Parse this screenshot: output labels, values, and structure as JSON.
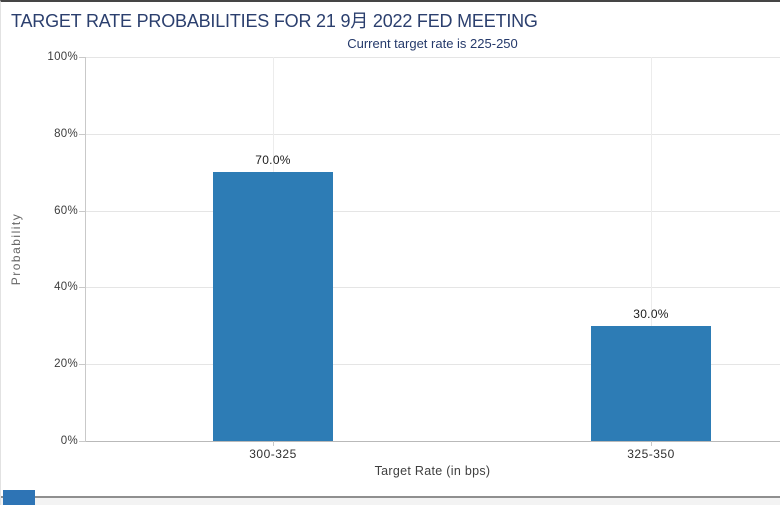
{
  "window": {
    "title": "TARGET RATE PROBABILITIES FOR 21 9月 2022 FED MEETING",
    "subtitle": "Current target rate is 225-250"
  },
  "chart_data": {
    "type": "bar",
    "title": "TARGET RATE PROBABILITIES FOR 21 9月 2022 FED MEETING",
    "subtitle": "Current target rate is 225-250",
    "categories": [
      "300-325",
      "325-350"
    ],
    "values": [
      70.0,
      30.0
    ],
    "value_labels": [
      "70.0%",
      "30.0%"
    ],
    "xlabel": "Target Rate (in bps)",
    "ylabel": "Probability",
    "ylim": [
      0,
      100
    ],
    "yticks": [
      0,
      20,
      40,
      60,
      80,
      100
    ],
    "ytick_labels": [
      "0%",
      "20%",
      "40%",
      "60%",
      "80%",
      "100%"
    ],
    "grid": true,
    "legend_position": "none",
    "bar_color": "#2d7cb5"
  },
  "colors": {
    "title_text": "#2b3f6e",
    "bar": "#2d7cb5",
    "footer_fragment_blue": "#2e74b5",
    "gridline": "#e5e5e5",
    "axis_line": "#c9c9c9"
  }
}
